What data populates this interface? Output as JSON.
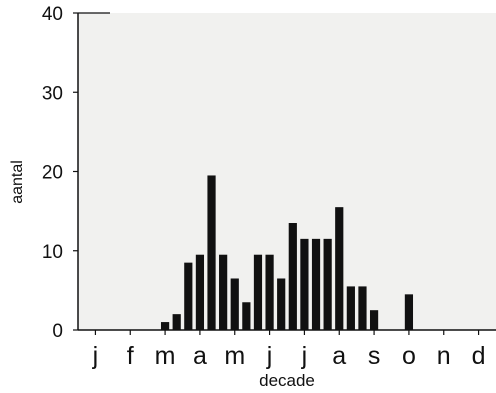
{
  "chart_data": {
    "type": "bar",
    "xlabel": "decade",
    "ylabel": "aantal",
    "ylim": [
      0,
      40
    ],
    "yticks": [
      0,
      10,
      20,
      30,
      40
    ],
    "month_labels": [
      "j",
      "f",
      "m",
      "a",
      "m",
      "j",
      "j",
      "a",
      "s",
      "o",
      "n",
      "d"
    ],
    "decades_total": 36,
    "values": [
      0,
      0,
      0,
      0,
      0,
      0,
      0,
      1,
      2,
      8.5,
      9.5,
      19.5,
      9.5,
      6.5,
      3.5,
      9.5,
      9.5,
      6.5,
      13.5,
      11.5,
      11.5,
      11.5,
      15.5,
      5.5,
      5.5,
      2.5,
      0,
      0,
      4.5,
      0,
      0,
      0,
      0,
      0,
      0,
      0
    ],
    "grid": false,
    "bar_color": "#111111",
    "plot_background": "#f1f1ef"
  }
}
